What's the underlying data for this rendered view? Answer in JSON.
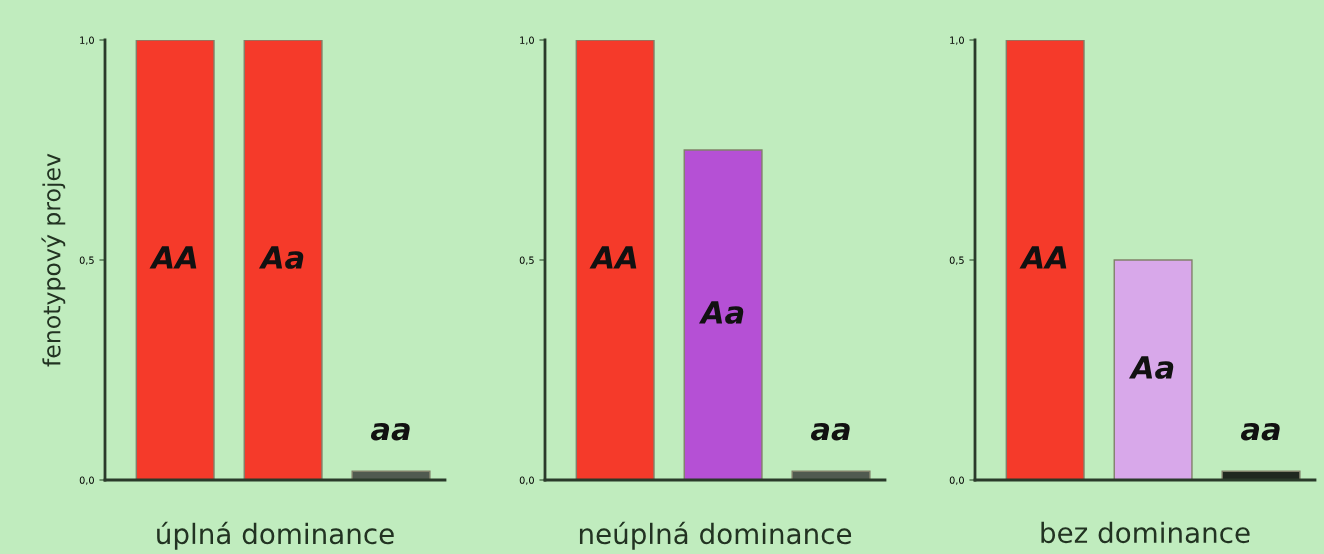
{
  "chart_data": [
    {
      "type": "bar",
      "xlabel": "úplná dominance",
      "ylabel": "fenotypový projev",
      "categories": [
        "AA",
        "Aa",
        "aa"
      ],
      "values": [
        1.0,
        1.0,
        0.02
      ],
      "colors": [
        "#f53a2a",
        "#f53a2a",
        "#505a50"
      ],
      "ylim": [
        0,
        1
      ],
      "yticks": [
        {
          "value": 0,
          "label": "0,0"
        },
        {
          "value": 0.5,
          "label": "0,5"
        },
        {
          "value": 1,
          "label": "1,0"
        }
      ],
      "grid": false,
      "legend": false
    },
    {
      "type": "bar",
      "xlabel": "neúplná dominance",
      "categories": [
        "AA",
        "Aa",
        "aa"
      ],
      "values": [
        1.0,
        0.75,
        0.02
      ],
      "colors": [
        "#f53a2a",
        "#b550d5",
        "#505a50"
      ],
      "ylim": [
        0,
        1
      ],
      "yticks": [
        {
          "value": 0,
          "label": "0,0"
        },
        {
          "value": 0.5,
          "label": "0,5"
        },
        {
          "value": 1,
          "label": "1,0"
        }
      ],
      "grid": false,
      "legend": false
    },
    {
      "type": "bar",
      "xlabel": "bez dominance",
      "categories": [
        "AA",
        "Aa",
        "aa"
      ],
      "values": [
        1.0,
        0.5,
        0.02
      ],
      "colors": [
        "#f53a2a",
        "#d8a8ea",
        "#202820"
      ],
      "ylim": [
        0,
        1
      ],
      "yticks": [
        {
          "value": 0,
          "label": "0,0"
        },
        {
          "value": 0.5,
          "label": "0,5"
        },
        {
          "value": 1,
          "label": "1,0"
        }
      ],
      "grid": false,
      "legend": false
    }
  ]
}
